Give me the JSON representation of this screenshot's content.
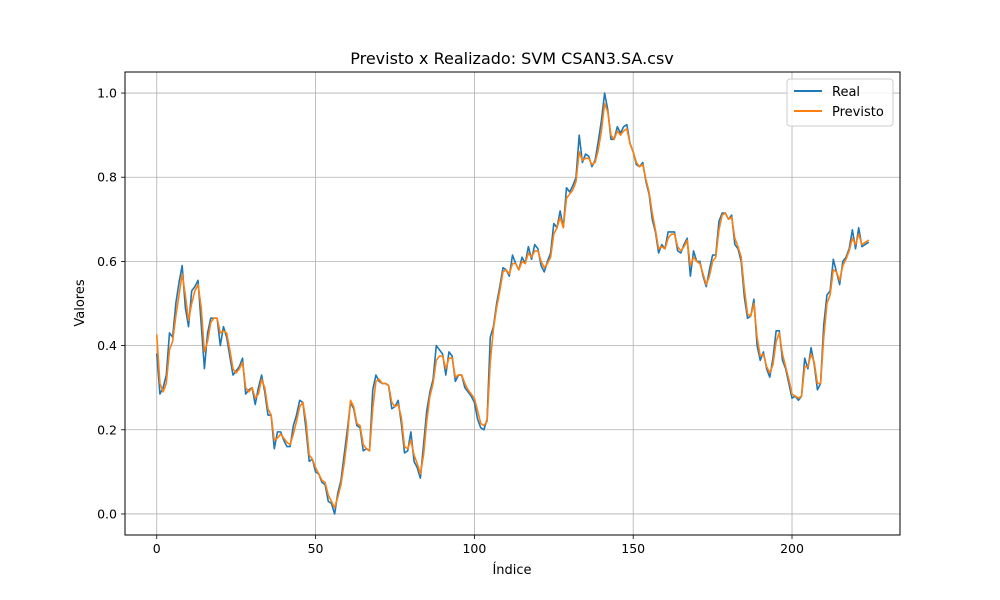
{
  "chart_data": {
    "type": "line",
    "title": "Previsto x Realizado: SVM CSAN3.SA.csv",
    "xlabel": "Índice",
    "ylabel": "Valores",
    "xlim": [
      -10,
      234
    ],
    "ylim": [
      -0.05,
      1.05
    ],
    "xticks": [
      0,
      50,
      100,
      150,
      200
    ],
    "yticks": [
      0.0,
      0.2,
      0.4,
      0.6,
      0.8,
      1.0
    ],
    "xtick_labels": [
      "0",
      "50",
      "100",
      "150",
      "200"
    ],
    "ytick_labels": [
      "0.0",
      "0.2",
      "0.4",
      "0.6",
      "0.8",
      "1.0"
    ],
    "grid": true,
    "legend_position": "top-right",
    "series": [
      {
        "name": "Real",
        "color": "#1f77b4",
        "values": [
          0.38,
          0.285,
          0.3,
          0.33,
          0.43,
          0.42,
          0.5,
          0.55,
          0.59,
          0.49,
          0.445,
          0.53,
          0.54,
          0.555,
          0.45,
          0.345,
          0.43,
          0.465,
          0.465,
          0.465,
          0.4,
          0.445,
          0.42,
          0.375,
          0.33,
          0.34,
          0.35,
          0.37,
          0.285,
          0.295,
          0.3,
          0.26,
          0.3,
          0.33,
          0.29,
          0.235,
          0.235,
          0.155,
          0.195,
          0.195,
          0.175,
          0.16,
          0.16,
          0.21,
          0.235,
          0.27,
          0.265,
          0.2,
          0.125,
          0.13,
          0.1,
          0.095,
          0.075,
          0.07,
          0.03,
          0.025,
          0.0,
          0.05,
          0.08,
          0.14,
          0.2,
          0.265,
          0.25,
          0.21,
          0.205,
          0.15,
          0.155,
          0.15,
          0.295,
          0.33,
          0.315,
          0.31,
          0.31,
          0.305,
          0.25,
          0.255,
          0.27,
          0.215,
          0.145,
          0.15,
          0.195,
          0.125,
          0.11,
          0.085,
          0.165,
          0.245,
          0.29,
          0.32,
          0.4,
          0.39,
          0.38,
          0.33,
          0.385,
          0.375,
          0.315,
          0.33,
          0.33,
          0.3,
          0.29,
          0.28,
          0.265,
          0.225,
          0.205,
          0.2,
          0.225,
          0.42,
          0.445,
          0.5,
          0.54,
          0.585,
          0.58,
          0.565,
          0.615,
          0.595,
          0.58,
          0.61,
          0.595,
          0.635,
          0.605,
          0.64,
          0.63,
          0.59,
          0.575,
          0.6,
          0.62,
          0.69,
          0.68,
          0.72,
          0.68,
          0.775,
          0.765,
          0.78,
          0.8,
          0.9,
          0.835,
          0.855,
          0.85,
          0.825,
          0.84,
          0.885,
          0.935,
          1.0,
          0.96,
          0.89,
          0.89,
          0.92,
          0.905,
          0.92,
          0.925,
          0.88,
          0.86,
          0.83,
          0.825,
          0.835,
          0.79,
          0.76,
          0.7,
          0.67,
          0.62,
          0.64,
          0.63,
          0.67,
          0.67,
          0.67,
          0.625,
          0.62,
          0.64,
          0.655,
          0.565,
          0.625,
          0.6,
          0.6,
          0.565,
          0.54,
          0.58,
          0.615,
          0.615,
          0.695,
          0.715,
          0.715,
          0.7,
          0.71,
          0.64,
          0.63,
          0.6,
          0.515,
          0.465,
          0.47,
          0.51,
          0.4,
          0.365,
          0.385,
          0.345,
          0.325,
          0.37,
          0.435,
          0.435,
          0.365,
          0.345,
          0.31,
          0.275,
          0.28,
          0.27,
          0.28,
          0.37,
          0.345,
          0.395,
          0.355,
          0.295,
          0.31,
          0.45,
          0.52,
          0.53,
          0.605,
          0.575,
          0.545,
          0.6,
          0.61,
          0.63,
          0.675,
          0.63,
          0.68,
          0.635,
          0.64,
          0.645
        ]
      },
      {
        "name": "Previsto",
        "color": "#ff7f0e",
        "values": [
          0.425,
          0.31,
          0.29,
          0.31,
          0.39,
          0.41,
          0.47,
          0.52,
          0.57,
          0.52,
          0.46,
          0.5,
          0.53,
          0.545,
          0.49,
          0.385,
          0.41,
          0.455,
          0.465,
          0.465,
          0.43,
          0.435,
          0.43,
          0.39,
          0.345,
          0.335,
          0.345,
          0.36,
          0.3,
          0.29,
          0.3,
          0.275,
          0.285,
          0.32,
          0.3,
          0.25,
          0.235,
          0.175,
          0.18,
          0.19,
          0.18,
          0.17,
          0.165,
          0.19,
          0.22,
          0.255,
          0.265,
          0.22,
          0.14,
          0.13,
          0.11,
          0.095,
          0.08,
          0.075,
          0.045,
          0.03,
          0.015,
          0.04,
          0.07,
          0.12,
          0.18,
          0.27,
          0.255,
          0.215,
          0.21,
          0.165,
          0.155,
          0.15,
          0.25,
          0.315,
          0.32,
          0.31,
          0.31,
          0.305,
          0.265,
          0.255,
          0.26,
          0.23,
          0.16,
          0.155,
          0.175,
          0.14,
          0.12,
          0.095,
          0.14,
          0.22,
          0.28,
          0.31,
          0.365,
          0.375,
          0.375,
          0.345,
          0.37,
          0.37,
          0.325,
          0.33,
          0.33,
          0.31,
          0.295,
          0.285,
          0.275,
          0.245,
          0.215,
          0.21,
          0.22,
          0.36,
          0.44,
          0.49,
          0.53,
          0.575,
          0.58,
          0.57,
          0.595,
          0.595,
          0.58,
          0.6,
          0.595,
          0.62,
          0.61,
          0.625,
          0.625,
          0.6,
          0.585,
          0.595,
          0.61,
          0.665,
          0.68,
          0.705,
          0.68,
          0.75,
          0.76,
          0.77,
          0.79,
          0.86,
          0.84,
          0.845,
          0.845,
          0.83,
          0.835,
          0.865,
          0.91,
          0.975,
          0.955,
          0.9,
          0.89,
          0.91,
          0.9,
          0.91,
          0.915,
          0.88,
          0.86,
          0.835,
          0.825,
          0.83,
          0.795,
          0.765,
          0.715,
          0.675,
          0.63,
          0.635,
          0.63,
          0.655,
          0.665,
          0.665,
          0.635,
          0.625,
          0.635,
          0.65,
          0.59,
          0.61,
          0.6,
          0.595,
          0.57,
          0.545,
          0.565,
          0.6,
          0.61,
          0.675,
          0.71,
          0.715,
          0.7,
          0.705,
          0.655,
          0.635,
          0.61,
          0.535,
          0.475,
          0.47,
          0.5,
          0.42,
          0.375,
          0.38,
          0.35,
          0.335,
          0.355,
          0.41,
          0.43,
          0.38,
          0.35,
          0.32,
          0.285,
          0.28,
          0.275,
          0.28,
          0.35,
          0.35,
          0.38,
          0.36,
          0.31,
          0.31,
          0.42,
          0.5,
          0.52,
          0.58,
          0.575,
          0.555,
          0.59,
          0.605,
          0.625,
          0.655,
          0.64,
          0.665,
          0.64,
          0.645,
          0.65
        ]
      }
    ]
  }
}
